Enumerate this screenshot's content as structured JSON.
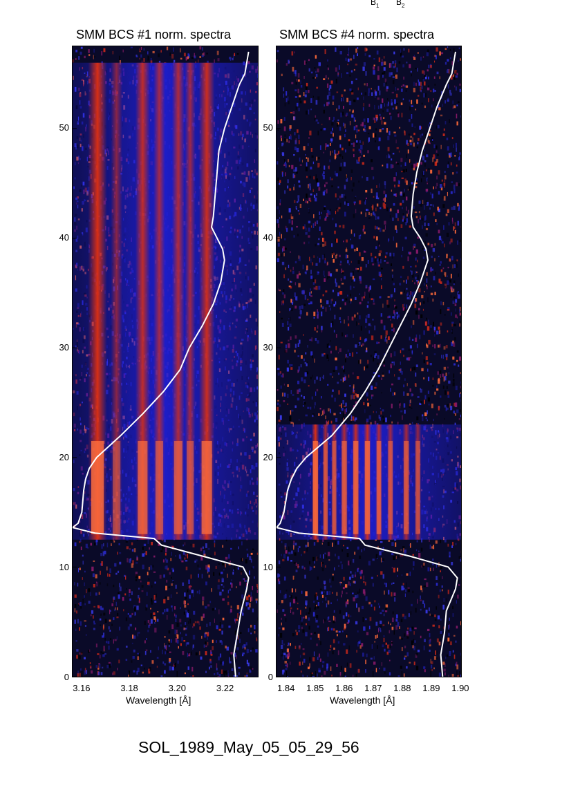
{
  "header_labels": [
    {
      "letter": "B",
      "sub": "1"
    },
    {
      "letter": "B",
      "sub": "2"
    }
  ],
  "event_id": "SOL_1989_May_05_05_29_56",
  "colors": {
    "background": "#0a0a28",
    "band_low": "#1f1fd8",
    "line_hot": "#e03010",
    "curve": "#ffffff"
  },
  "chart_data": [
    {
      "type": "heatmap",
      "title": "SMM BCS #1 norm. spectra",
      "xlabel": "Wavelength [Å]",
      "ylabel": "",
      "xlim": [
        3.156,
        3.234
      ],
      "ylim": [
        0,
        57.5
      ],
      "x_ticks": [
        "3.16",
        "3.18",
        "3.20",
        "3.22"
      ],
      "x_tick_values": [
        3.16,
        3.18,
        3.2,
        3.22
      ],
      "y_ticks": [
        "0",
        "10",
        "20",
        "30",
        "40",
        "50"
      ],
      "y_tick_values": [
        0,
        10,
        20,
        30,
        40,
        50
      ],
      "emission_lines": [
        {
          "x": 3.1665,
          "width": 0.0036,
          "strength": 1.0
        },
        {
          "x": 3.1745,
          "width": 0.0022,
          "strength": 0.35
        },
        {
          "x": 3.1855,
          "width": 0.0028,
          "strength": 0.8
        },
        {
          "x": 3.1925,
          "width": 0.0022,
          "strength": 0.55
        },
        {
          "x": 3.2005,
          "width": 0.0024,
          "strength": 0.65
        },
        {
          "x": 3.2055,
          "width": 0.002,
          "strength": 0.5
        },
        {
          "x": 3.2125,
          "width": 0.003,
          "strength": 0.9
        }
      ],
      "active_interval_y": [
        12.5,
        56
      ],
      "curve_x_scale": [
        0.0,
        1.0
      ],
      "intensity_curve": [
        {
          "y": 0,
          "v": 0.88
        },
        {
          "y": 2,
          "v": 0.87
        },
        {
          "y": 4,
          "v": 0.89
        },
        {
          "y": 6,
          "v": 0.91
        },
        {
          "y": 8,
          "v": 0.94
        },
        {
          "y": 9,
          "v": 0.95
        },
        {
          "y": 10,
          "v": 0.92
        },
        {
          "y": 11,
          "v": 0.7
        },
        {
          "y": 12,
          "v": 0.48
        },
        {
          "y": 12.6,
          "v": 0.44
        },
        {
          "y": 13.1,
          "v": 0.12
        },
        {
          "y": 13.6,
          "v": 0.0
        },
        {
          "y": 14.0,
          "v": 0.03
        },
        {
          "y": 15,
          "v": 0.05
        },
        {
          "y": 17,
          "v": 0.06
        },
        {
          "y": 18,
          "v": 0.07
        },
        {
          "y": 19,
          "v": 0.09
        },
        {
          "y": 20,
          "v": 0.13
        },
        {
          "y": 22,
          "v": 0.26
        },
        {
          "y": 24,
          "v": 0.38
        },
        {
          "y": 26,
          "v": 0.49
        },
        {
          "y": 28,
          "v": 0.58
        },
        {
          "y": 30,
          "v": 0.63
        },
        {
          "y": 32,
          "v": 0.7
        },
        {
          "y": 34,
          "v": 0.76
        },
        {
          "y": 36,
          "v": 0.8
        },
        {
          "y": 38,
          "v": 0.82
        },
        {
          "y": 39,
          "v": 0.81
        },
        {
          "y": 40,
          "v": 0.78
        },
        {
          "y": 41,
          "v": 0.75
        },
        {
          "y": 42,
          "v": 0.76
        },
        {
          "y": 44,
          "v": 0.77
        },
        {
          "y": 46,
          "v": 0.78
        },
        {
          "y": 48,
          "v": 0.79
        },
        {
          "y": 50,
          "v": 0.82
        },
        {
          "y": 52,
          "v": 0.86
        },
        {
          "y": 54,
          "v": 0.9
        },
        {
          "y": 55,
          "v": 0.93
        },
        {
          "y": 57,
          "v": 0.95
        }
      ],
      "grid": false
    },
    {
      "type": "heatmap",
      "title": "SMM BCS #4 norm. spectra",
      "xlabel": "Wavelength [Å]",
      "ylabel": "",
      "xlim": [
        1.8365,
        1.9005
      ],
      "ylim": [
        0,
        57.5
      ],
      "x_ticks": [
        "1.84",
        "1.85",
        "1.86",
        "1.87",
        "1.88",
        "1.89",
        "1.90"
      ],
      "x_tick_values": [
        1.84,
        1.85,
        1.86,
        1.87,
        1.88,
        1.89,
        1.9
      ],
      "y_ticks": [
        "0",
        "10",
        "20",
        "30",
        "40",
        "50"
      ],
      "y_tick_values": [
        0,
        10,
        20,
        30,
        40,
        50
      ],
      "emission_lines": [
        {
          "x": 1.85,
          "width": 0.0012,
          "strength": 1.0
        },
        {
          "x": 1.8535,
          "width": 0.001,
          "strength": 0.6
        },
        {
          "x": 1.8565,
          "width": 0.001,
          "strength": 0.55
        },
        {
          "x": 1.86,
          "width": 0.0012,
          "strength": 0.65
        },
        {
          "x": 1.864,
          "width": 0.0012,
          "strength": 0.85
        },
        {
          "x": 1.868,
          "width": 0.0012,
          "strength": 0.9
        },
        {
          "x": 1.872,
          "width": 0.0011,
          "strength": 0.7
        },
        {
          "x": 1.876,
          "width": 0.0011,
          "strength": 0.55
        },
        {
          "x": 1.8815,
          "width": 0.0012,
          "strength": 0.6
        },
        {
          "x": 1.8855,
          "width": 0.0011,
          "strength": 0.45
        }
      ],
      "active_interval_y": [
        12.5,
        23
      ],
      "curve_x_scale": [
        0.0,
        1.0
      ],
      "intensity_curve": [
        {
          "y": 0,
          "v": 0.9
        },
        {
          "y": 2,
          "v": 0.89
        },
        {
          "y": 4,
          "v": 0.91
        },
        {
          "y": 6,
          "v": 0.92
        },
        {
          "y": 8,
          "v": 0.97
        },
        {
          "y": 9,
          "v": 0.98
        },
        {
          "y": 10,
          "v": 0.93
        },
        {
          "y": 11,
          "v": 0.72
        },
        {
          "y": 12,
          "v": 0.48
        },
        {
          "y": 12.6,
          "v": 0.45
        },
        {
          "y": 13.1,
          "v": 0.12
        },
        {
          "y": 13.6,
          "v": 0.0
        },
        {
          "y": 14.0,
          "v": 0.02
        },
        {
          "y": 15,
          "v": 0.04
        },
        {
          "y": 16,
          "v": 0.05
        },
        {
          "y": 17,
          "v": 0.06
        },
        {
          "y": 18,
          "v": 0.08
        },
        {
          "y": 19,
          "v": 0.11
        },
        {
          "y": 20,
          "v": 0.16
        },
        {
          "y": 22,
          "v": 0.3
        },
        {
          "y": 24,
          "v": 0.4
        },
        {
          "y": 26,
          "v": 0.48
        },
        {
          "y": 28,
          "v": 0.55
        },
        {
          "y": 30,
          "v": 0.61
        },
        {
          "y": 32,
          "v": 0.67
        },
        {
          "y": 34,
          "v": 0.73
        },
        {
          "y": 36,
          "v": 0.78
        },
        {
          "y": 38,
          "v": 0.82
        },
        {
          "y": 39,
          "v": 0.81
        },
        {
          "y": 40,
          "v": 0.78
        },
        {
          "y": 41,
          "v": 0.74
        },
        {
          "y": 42,
          "v": 0.73
        },
        {
          "y": 44,
          "v": 0.74
        },
        {
          "y": 46,
          "v": 0.76
        },
        {
          "y": 48,
          "v": 0.79
        },
        {
          "y": 50,
          "v": 0.83
        },
        {
          "y": 52,
          "v": 0.87
        },
        {
          "y": 54,
          "v": 0.92
        },
        {
          "y": 55,
          "v": 0.95
        },
        {
          "y": 57,
          "v": 0.97
        }
      ],
      "grid": false
    }
  ]
}
